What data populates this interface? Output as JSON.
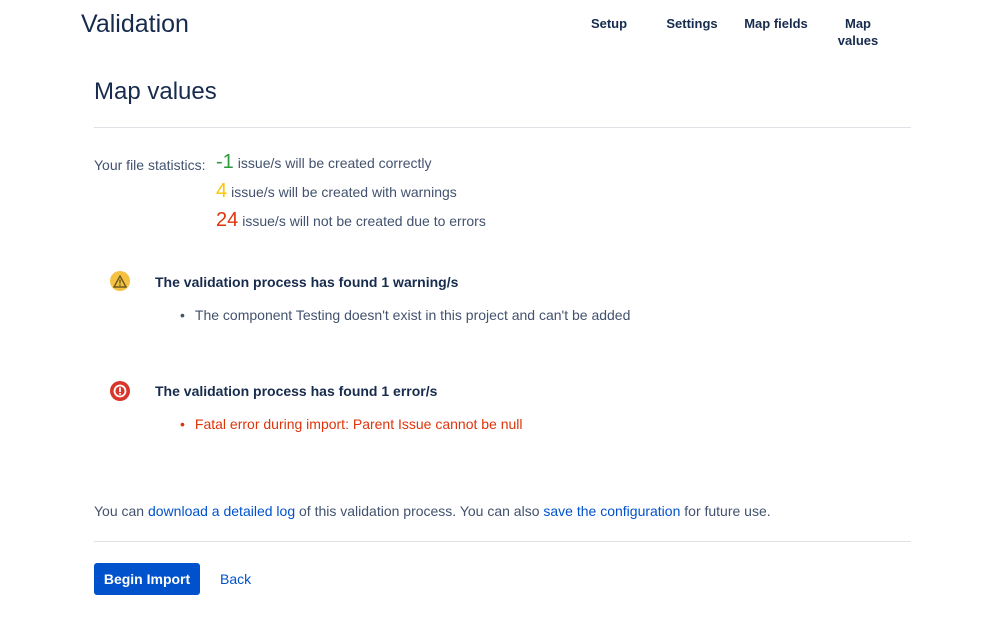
{
  "header": {
    "title": "Validation",
    "steps": [
      {
        "label": "Setup"
      },
      {
        "label": "Settings"
      },
      {
        "label": "Map fields"
      },
      {
        "label": "Map values"
      }
    ]
  },
  "page_title": "Map values",
  "stats": {
    "label": "Your file statistics:",
    "rows": [
      {
        "count": "-1",
        "text": "issue/s will be created correctly",
        "color": "#2e9b3e"
      },
      {
        "count": "4",
        "text": "issue/s will be created with warnings",
        "color": "#ffc400"
      },
      {
        "count": "24",
        "text": "issue/s will not be created due to errors",
        "color": "#de350b"
      }
    ]
  },
  "warnings": {
    "icon": "warning-icon",
    "heading": "The validation process has found 1 warning/s",
    "items": [
      "The component Testing doesn't exist in this project and can't be added"
    ]
  },
  "errors": {
    "icon": "error-icon",
    "heading": "The validation process has found 1 error/s",
    "items": [
      "Fatal error during import: Parent Issue cannot be null"
    ]
  },
  "footer": {
    "t1": "You can ",
    "link1": "download a detailed log",
    "t2": " of this validation process. You can also ",
    "link2": "save the configuration",
    "t3": " for future use."
  },
  "actions": {
    "begin": "Begin Import",
    "back": "Back"
  },
  "colors": {
    "primary": "#0052cc",
    "warning": "#f5c143",
    "error": "#d9362b"
  }
}
